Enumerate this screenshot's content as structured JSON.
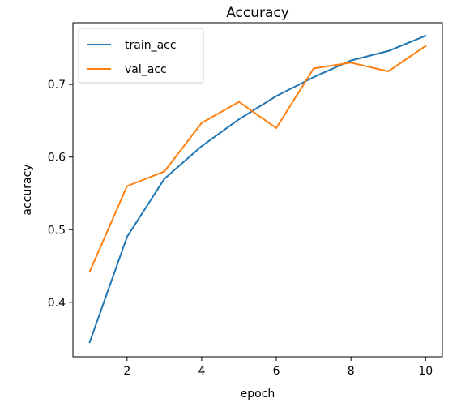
{
  "chart_data": {
    "type": "line",
    "title": "Accuracy",
    "xlabel": "epoch",
    "ylabel": "accuracy",
    "x": [
      1,
      2,
      3,
      4,
      5,
      6,
      7,
      8,
      9,
      10
    ],
    "xlim": [
      0.55,
      10.45
    ],
    "ylim": [
      0.325,
      0.785
    ],
    "xticks": [
      2,
      4,
      6,
      8,
      10
    ],
    "xtick_labels": [
      "2",
      "4",
      "6",
      "8",
      "10"
    ],
    "yticks": [
      0.4,
      0.5,
      0.6,
      0.7
    ],
    "ytick_labels": [
      "0.4",
      "0.5",
      "0.6",
      "0.7"
    ],
    "grid": false,
    "legend_position": "top-left",
    "series": [
      {
        "name": "train_acc",
        "color": "#1f77b4",
        "values": [
          0.345,
          0.49,
          0.57,
          0.615,
          0.652,
          0.684,
          0.71,
          0.733,
          0.746,
          0.767
        ]
      },
      {
        "name": "val_acc",
        "color": "#ff7f0e",
        "values": [
          0.442,
          0.56,
          0.58,
          0.647,
          0.676,
          0.64,
          0.722,
          0.73,
          0.718,
          0.753
        ]
      }
    ]
  }
}
